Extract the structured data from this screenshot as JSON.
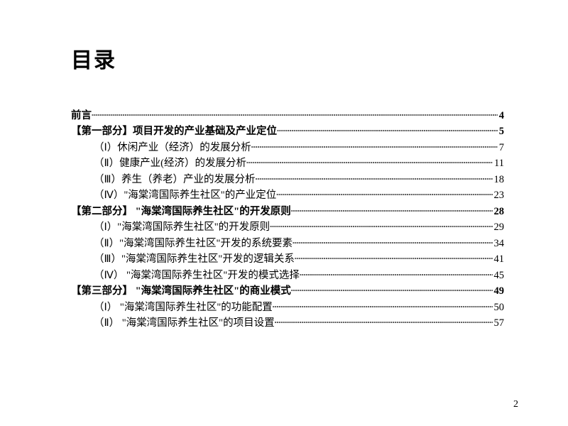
{
  "title": "目录",
  "page_number": "2",
  "colors": {
    "text": "#000000",
    "background": "#ffffff"
  },
  "typography": {
    "title_size_pt": 30,
    "body_size_pt": 14.5,
    "font_family": "SimSun"
  },
  "toc": [
    {
      "label": "前言",
      "page": "4",
      "indent": false,
      "bold": true
    },
    {
      "label": "【第一部分】项目开发的产业基础及产业定位",
      "page": "5",
      "indent": false,
      "bold": true
    },
    {
      "label": "（Ⅰ）休闲产业（经济）的发展分析",
      "page": "7",
      "indent": true,
      "bold": false
    },
    {
      "label": "（Ⅱ）健康产业(经济）的发展分析",
      "page": "11",
      "indent": true,
      "bold": false
    },
    {
      "label": "（Ⅲ）养生（养老）产业的发展分析",
      "page": "18",
      "indent": true,
      "bold": false
    },
    {
      "label": "（Ⅳ）\"海棠湾国际养生社区\"的产业定位",
      "page": "23",
      "indent": true,
      "bold": false
    },
    {
      "label": "【第二部分】 \"海棠湾国际养生社区\"的开发原则",
      "page": "28",
      "indent": false,
      "bold": true
    },
    {
      "label": "（Ⅰ）\"海棠湾国际养生社区\"的开发原则",
      "page": "29",
      "indent": true,
      "bold": false
    },
    {
      "label": "（Ⅱ）\"海棠湾国际养生社区\"开发的系统要素",
      "page": "34",
      "indent": true,
      "bold": false
    },
    {
      "label": "（Ⅲ）\"海棠湾国际养生社区\"开发的逻辑关系",
      "page": "41",
      "indent": true,
      "bold": false
    },
    {
      "label": "（Ⅳ） \"海棠湾国际养生社区\"开发的模式选择",
      "page": "45",
      "indent": true,
      "bold": false
    },
    {
      "label": "【第三部分】 \"海棠湾国际养生社区\"的商业模式",
      "page": "49",
      "indent": false,
      "bold": true
    },
    {
      "label": "（Ⅰ） \"海棠湾国际养生社区\"的功能配置",
      "page": "50",
      "indent": true,
      "bold": false
    },
    {
      "label": "（Ⅱ） \"海棠湾国际养生社区\"的项目设置",
      "page": "57",
      "indent": true,
      "bold": false
    }
  ]
}
